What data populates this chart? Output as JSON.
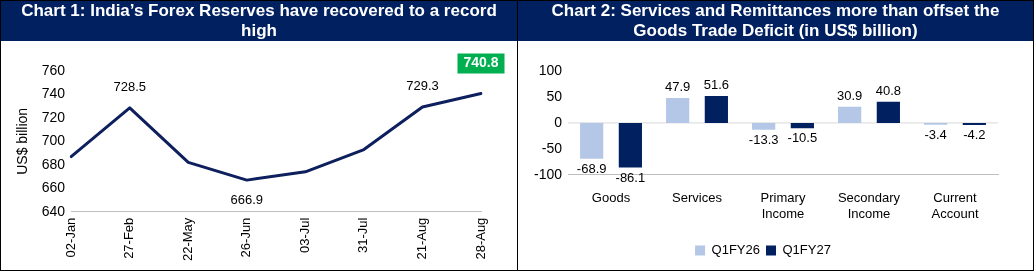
{
  "chart_data": [
    {
      "type": "line",
      "title": "Chart 1: India’s Forex Reserves have recovered to a record high",
      "ylabel": "US$ billion",
      "categories": [
        "02-Jan",
        "27-Feb",
        "22-May",
        "26-Jun",
        "03-Jul",
        "31-Jul",
        "21-Aug",
        "28-Aug"
      ],
      "series": [
        {
          "color": "#0d1f5c",
          "values": [
            687,
            728.5,
            682,
            666.9,
            674,
            693,
            729.3,
            740.8
          ],
          "value_labels": [
            null,
            "728.5",
            null,
            "666.9",
            null,
            null,
            "729.3",
            null
          ]
        }
      ],
      "ylim": [
        640,
        760
      ],
      "yticks": [
        640,
        660,
        680,
        700,
        720,
        740,
        760
      ],
      "grid": false,
      "legend": false,
      "marker": "none",
      "line_style": "solid",
      "annotations": [
        {
          "text": "740.8",
          "x": "28-Aug",
          "y": 740.8
        }
      ]
    },
    {
      "type": "bar",
      "title": "Chart 2: Services and Remittances more than offset the Goods Trade Deficit (in US$ billion)",
      "categories": [
        "Goods",
        "Services",
        "Primary Income",
        "Secondary Income",
        "Current Account"
      ],
      "series": [
        {
          "name": "Q1FY26",
          "color": "#b4c7e7",
          "values": [
            -68.9,
            47.9,
            -13.3,
            30.9,
            -3.4
          ]
        },
        {
          "name": "Q1FY27",
          "color": "#002060",
          "values": [
            -86.1,
            51.6,
            -10.5,
            40.8,
            -4.2
          ]
        }
      ],
      "ylim": [
        -100,
        100
      ],
      "yticks": [
        -100,
        -50,
        0,
        50,
        100
      ],
      "grid": false,
      "legend": "bottom",
      "data_labels": true,
      "ref_lines": [
        {
          "axis": "y",
          "value": 0,
          "color": "#d9d9d9"
        }
      ]
    }
  ]
}
